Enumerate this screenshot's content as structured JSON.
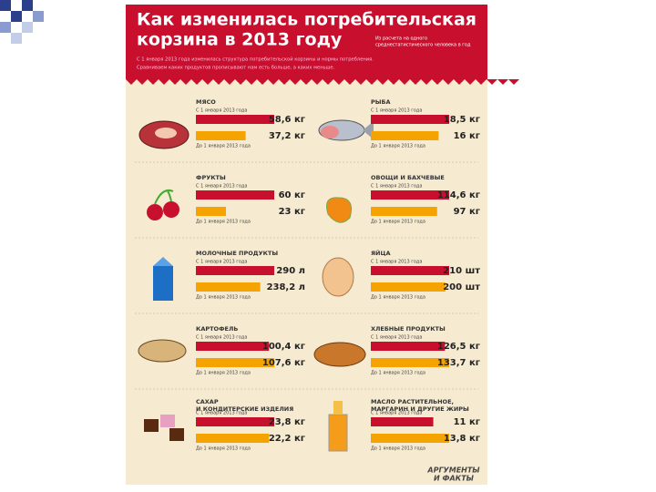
{
  "header": {
    "title": [
      "Как изменилась потребительская",
      "корзина в 2013 году"
    ],
    "note": [
      "Из расчета на одного",
      "среднестатистического человека в год"
    ],
    "subtitle": [
      "С 1 января 2013 года изменилась структура потребительской корзины и нормы потребления.",
      "Сравниваем каких продуктов прописывают нам есть больше, а каких меньше."
    ]
  },
  "footer": [
    "АРГУМЕНТЫ",
    "И ФАКТЫ"
  ],
  "chart_data": [
    {
      "type": "bar",
      "title": "МЯСО",
      "categories": [
        "С 1 января 2013 года",
        "До 1 января 2013 года"
      ],
      "values": [
        58.6,
        37.2
      ],
      "value_labels": [
        "58,6 кг",
        "37,2 кг"
      ],
      "colors": [
        "#c8102e",
        "#f5a300"
      ]
    },
    {
      "type": "bar",
      "title": "РЫБА",
      "categories": [
        "С 1 января 2013 года",
        "До 1 января 2013 года"
      ],
      "values": [
        18.5,
        16
      ],
      "value_labels": [
        "18,5 кг",
        "16 кг"
      ],
      "colors": [
        "#c8102e",
        "#f5a300"
      ]
    },
    {
      "type": "bar",
      "title": "ФРУКТЫ",
      "categories": [
        "С 1 января 2013 года",
        "До 1 января 2013 года"
      ],
      "values": [
        60,
        23
      ],
      "value_labels": [
        "60 кг",
        "23 кг"
      ],
      "colors": [
        "#c8102e",
        "#f5a300"
      ]
    },
    {
      "type": "bar",
      "title": "ОВОЩИ И БАХЧЕВЫЕ",
      "categories": [
        "С 1 января 2013 года",
        "До 1 января 2013 года"
      ],
      "values": [
        114.6,
        97
      ],
      "value_labels": [
        "114,6 кг",
        "97 кг"
      ],
      "colors": [
        "#c8102e",
        "#f5a300"
      ]
    },
    {
      "type": "bar",
      "title": "МОЛОЧНЫЕ ПРОДУКТЫ",
      "categories": [
        "С 1 января 2013 года",
        "До 1 января 2013 года"
      ],
      "values": [
        290,
        238.2
      ],
      "value_labels": [
        "290 л",
        "238,2 л"
      ],
      "colors": [
        "#c8102e",
        "#f5a300"
      ]
    },
    {
      "type": "bar",
      "title": "ЯЙЦА",
      "categories": [
        "С 1 января 2013 года",
        "До 1 января 2013 года"
      ],
      "values": [
        210,
        200
      ],
      "value_labels": [
        "210 шт",
        "200 шт"
      ],
      "colors": [
        "#c8102e",
        "#f5a300"
      ]
    },
    {
      "type": "bar",
      "title": "КАРТОФЕЛЬ",
      "categories": [
        "С 1 января 2013 года",
        "До 1 января 2013 года"
      ],
      "values": [
        100.4,
        107.6
      ],
      "value_labels": [
        "100,4 кг",
        "107,6 кг"
      ],
      "colors": [
        "#c8102e",
        "#f5a300"
      ]
    },
    {
      "type": "bar",
      "title": "ХЛЕБНЫЕ ПРОДУКТЫ",
      "categories": [
        "С 1 января 2013 года",
        "До 1 января 2013 года"
      ],
      "values": [
        126.5,
        133.7
      ],
      "value_labels": [
        "126,5 кг",
        "133,7 кг"
      ],
      "colors": [
        "#c8102e",
        "#f5a300"
      ]
    },
    {
      "type": "bar",
      "title": [
        "САХАР",
        "И КОНДИТЕРСКИЕ ИЗДЕЛИЯ"
      ],
      "categories": [
        "С 1 января 2013 года",
        "До 1 января 2013 года"
      ],
      "values": [
        23.8,
        22.2
      ],
      "value_labels": [
        "23,8 кг",
        "22,2 кг"
      ],
      "colors": [
        "#c8102e",
        "#f5a300"
      ]
    },
    {
      "type": "bar",
      "title": [
        "МАСЛО РАСТИТЕЛЬНОЕ,",
        "МАРГАРИН И ДРУГИЕ ЖИРЫ"
      ],
      "categories": [
        "С 1 января 2013 года",
        "До 1 января 2013 года"
      ],
      "values": [
        11,
        13.8
      ],
      "value_labels": [
        "11 кг",
        "13,8 кг"
      ],
      "colors": [
        "#c8102e",
        "#f5a300"
      ]
    }
  ]
}
